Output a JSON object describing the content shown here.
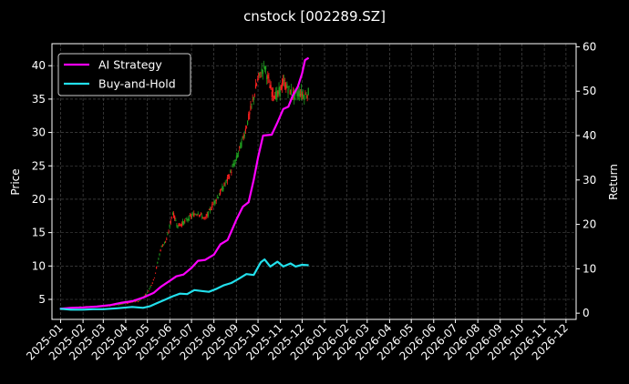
{
  "chart_data": {
    "type": "line",
    "title": "cnstock [002289.SZ]",
    "xlabel": "",
    "ylabel_left": "Price",
    "ylabel_right": "Return",
    "xlim": [
      "2024-12-20",
      "2026-12-15"
    ],
    "ylim_left": [
      2,
      43.3
    ],
    "ylim_right": [
      -1.4,
      60.7
    ],
    "x_ticks": [
      "2025-01",
      "2025-02",
      "2025-03",
      "2025-04",
      "2025-05",
      "2025-06",
      "2025-07",
      "2025-08",
      "2025-09",
      "2025-10",
      "2025-11",
      "2025-12",
      "2026-01",
      "2026-02",
      "2026-03",
      "2026-04",
      "2026-05",
      "2026-06",
      "2026-07",
      "2026-08",
      "2026-09",
      "2026-10",
      "2026-11",
      "2026-12"
    ],
    "y_ticks_left": [
      5,
      10,
      15,
      20,
      25,
      30,
      35,
      40
    ],
    "y_ticks_right": [
      0,
      10,
      20,
      30,
      40,
      50,
      60
    ],
    "grid": true,
    "legend_position": "top-left",
    "colors": {
      "background": "#000000",
      "strategy": "#ff00ff",
      "buyhold": "#22e0ec",
      "candle_up": "#ff1f1f",
      "candle_down": "#1f9e1f",
      "grid": "#555555",
      "text": "#ffffff"
    },
    "series": [
      {
        "name": "AI Strategy",
        "axis": "right",
        "points": [
          [
            "2024-12-31",
            1
          ],
          [
            "2025-01-15",
            1.2
          ],
          [
            "2025-02-01",
            1.3
          ],
          [
            "2025-02-20",
            1.5
          ],
          [
            "2025-03-10",
            1.8
          ],
          [
            "2025-03-25",
            2.3
          ],
          [
            "2025-04-10",
            2.7
          ],
          [
            "2025-04-25",
            3.5
          ],
          [
            "2025-05-10",
            4.6
          ],
          [
            "2025-05-20",
            6
          ],
          [
            "2025-06-01",
            7.3
          ],
          [
            "2025-06-10",
            8.3
          ],
          [
            "2025-06-20",
            8.7
          ],
          [
            "2025-07-01",
            10.2
          ],
          [
            "2025-07-10",
            11.8
          ],
          [
            "2025-07-20",
            12
          ],
          [
            "2025-08-01",
            13.2
          ],
          [
            "2025-08-10",
            15.5
          ],
          [
            "2025-08-20",
            16.5
          ],
          [
            "2025-09-01",
            21
          ],
          [
            "2025-09-10",
            24
          ],
          [
            "2025-09-18",
            25
          ],
          [
            "2025-09-25",
            30
          ],
          [
            "2025-10-01",
            35
          ],
          [
            "2025-10-08",
            40
          ],
          [
            "2025-10-20",
            40.2
          ],
          [
            "2025-10-28",
            43
          ],
          [
            "2025-11-05",
            46
          ],
          [
            "2025-11-12",
            46.5
          ],
          [
            "2025-11-18",
            49
          ],
          [
            "2025-11-25",
            51
          ],
          [
            "2025-12-01",
            54
          ],
          [
            "2025-12-05",
            57
          ],
          [
            "2025-12-10",
            57.5
          ]
        ]
      },
      {
        "name": "Buy-and-Hold",
        "axis": "right",
        "points": [
          [
            "2024-12-31",
            1
          ],
          [
            "2025-01-15",
            0.8
          ],
          [
            "2025-02-01",
            0.8
          ],
          [
            "2025-02-15",
            0.9
          ],
          [
            "2025-03-01",
            0.9
          ],
          [
            "2025-03-20",
            1.1
          ],
          [
            "2025-04-10",
            1.4
          ],
          [
            "2025-04-25",
            1.2
          ],
          [
            "2025-05-05",
            1.6
          ],
          [
            "2025-05-15",
            2.3
          ],
          [
            "2025-05-25",
            3
          ],
          [
            "2025-06-05",
            3.8
          ],
          [
            "2025-06-15",
            4.4
          ],
          [
            "2025-06-25",
            4.3
          ],
          [
            "2025-07-05",
            5.2
          ],
          [
            "2025-07-15",
            5
          ],
          [
            "2025-07-25",
            4.8
          ],
          [
            "2025-08-05",
            5.5
          ],
          [
            "2025-08-15",
            6.3
          ],
          [
            "2025-08-25",
            6.8
          ],
          [
            "2025-09-05",
            7.8
          ],
          [
            "2025-09-15",
            8.8
          ],
          [
            "2025-09-25",
            8.6
          ],
          [
            "2025-10-05",
            11.5
          ],
          [
            "2025-10-10",
            12.1
          ],
          [
            "2025-10-18",
            10.5
          ],
          [
            "2025-10-28",
            11.6
          ],
          [
            "2025-11-05",
            10.5
          ],
          [
            "2025-11-15",
            11.2
          ],
          [
            "2025-11-22",
            10.5
          ],
          [
            "2025-12-01",
            10.9
          ],
          [
            "2025-12-10",
            10.8
          ]
        ]
      },
      {
        "name": "Price (candlesticks)",
        "axis": "left",
        "type": "candlestick",
        "points": [
          [
            "2025-01-02",
            3.5
          ],
          [
            "2025-01-20",
            3.8
          ],
          [
            "2025-02-10",
            3.9
          ],
          [
            "2025-03-01",
            4.0
          ],
          [
            "2025-03-20",
            4.2
          ],
          [
            "2025-04-05",
            4.5
          ],
          [
            "2025-04-20",
            4.8
          ],
          [
            "2025-05-01",
            6
          ],
          [
            "2025-05-10",
            8
          ],
          [
            "2025-05-20",
            12.8
          ],
          [
            "2025-05-28",
            14
          ],
          [
            "2025-06-05",
            18
          ],
          [
            "2025-06-12",
            16
          ],
          [
            "2025-06-20",
            16.5
          ],
          [
            "2025-07-01",
            17.5
          ],
          [
            "2025-07-10",
            18
          ],
          [
            "2025-07-20",
            17
          ],
          [
            "2025-08-01",
            19.5
          ],
          [
            "2025-08-10",
            21
          ],
          [
            "2025-08-20",
            23
          ],
          [
            "2025-09-01",
            26
          ],
          [
            "2025-09-10",
            29
          ],
          [
            "2025-09-20",
            33
          ],
          [
            "2025-10-01",
            38
          ],
          [
            "2025-10-10",
            40
          ],
          [
            "2025-10-20",
            36
          ],
          [
            "2025-10-28",
            35.5
          ],
          [
            "2025-11-05",
            37.5
          ],
          [
            "2025-11-12",
            36.5
          ],
          [
            "2025-11-20",
            35.5
          ],
          [
            "2025-11-28",
            36
          ],
          [
            "2025-12-05",
            35.5
          ],
          [
            "2025-12-10",
            36
          ]
        ]
      }
    ]
  }
}
